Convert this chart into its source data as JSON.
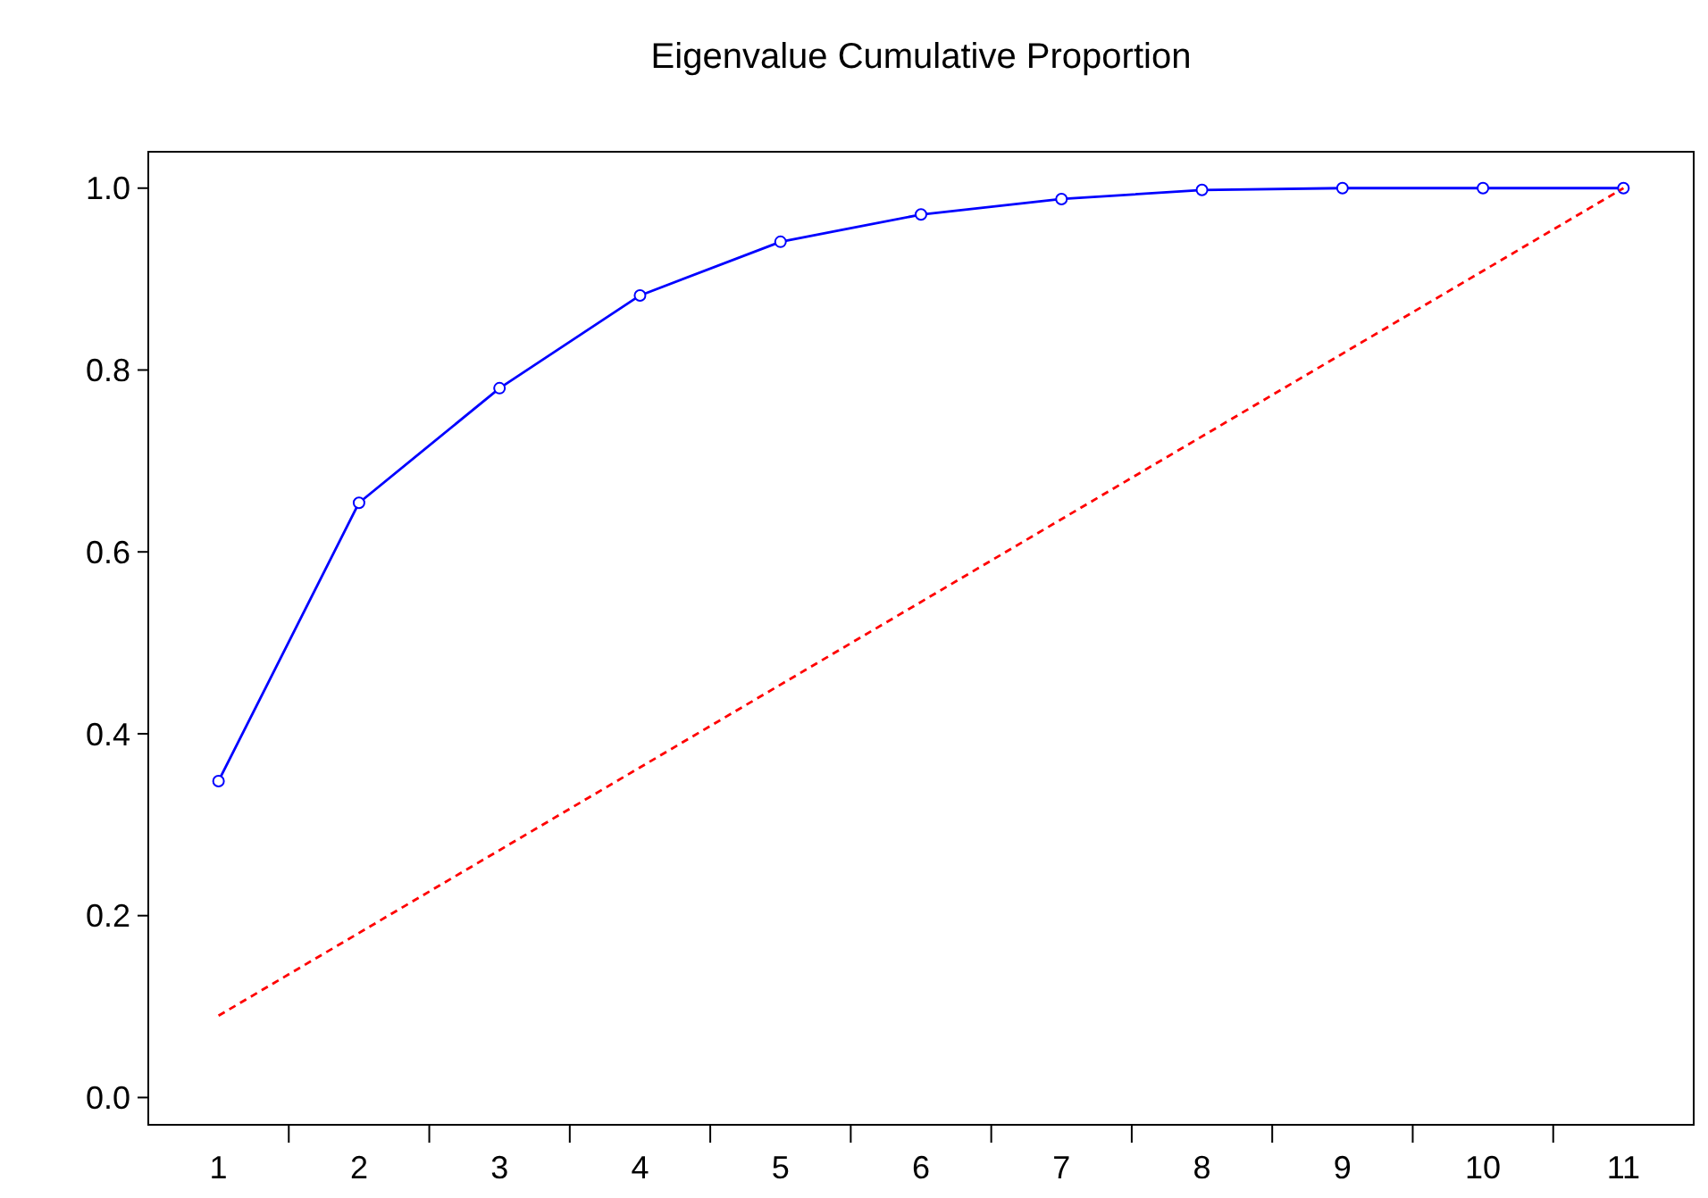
{
  "chart_data": {
    "type": "line",
    "title": "Eigenvalue Cumulative Proportion",
    "x": [
      1,
      2,
      3,
      4,
      5,
      6,
      7,
      8,
      9,
      10,
      11
    ],
    "xlim": [
      0.5,
      11.5
    ],
    "xticks": [
      1,
      2,
      3,
      4,
      5,
      6,
      7,
      8,
      9,
      10,
      11,
      {
        "value": 1.5,
        "label": null
      },
      {
        "value": 2.5,
        "label": null
      },
      {
        "value": 3.5,
        "label": null
      },
      {
        "value": 4.5,
        "label": null
      },
      {
        "value": 5.5,
        "label": null
      },
      {
        "value": 6.5,
        "label": null
      },
      {
        "value": 7.5,
        "label": null
      },
      {
        "value": 8.5,
        "label": null
      },
      {
        "value": 9.5,
        "label": null
      },
      {
        "value": 10.5,
        "label": null
      }
    ],
    "ylim": [
      -0.03,
      1.04
    ],
    "yticks": [
      {
        "value": 0,
        "label": "0.0"
      },
      0.2,
      0.4,
      0.6,
      0.8,
      {
        "value": 1,
        "label": "1.0"
      }
    ],
    "grid": false,
    "series": [
      {
        "color": "#0000ff",
        "marker": "circle",
        "line_style": "solid",
        "values": [
          0.348,
          0.654,
          0.78,
          0.882,
          0.941,
          0.971,
          0.988,
          0.998,
          1.0,
          1.0,
          1.0
        ]
      },
      {
        "color": "#ff0000",
        "marker": "none",
        "line_style": "dashed",
        "x": [
          1,
          11
        ],
        "values": [
          0.09,
          1.0
        ]
      }
    ]
  }
}
